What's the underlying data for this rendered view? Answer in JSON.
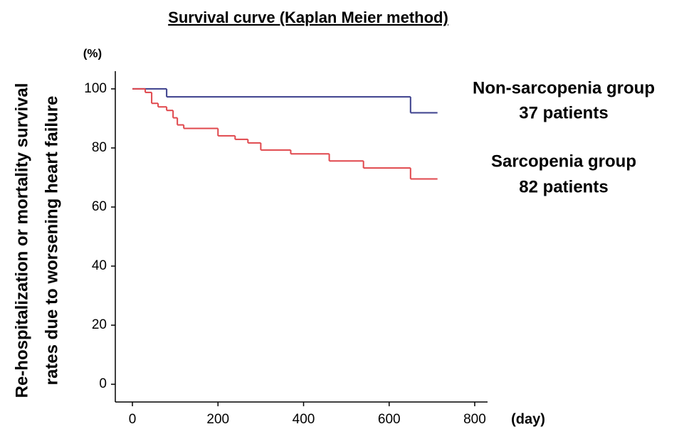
{
  "chart_data": {
    "type": "step",
    "title": "Survival curve (Kaplan Meier method)",
    "y_label": [
      "Re-hospitalization or mortality survival",
      "rates due to worsening heart failure"
    ],
    "y_unit": "(%)",
    "x_unit": "(day)",
    "xlim": [
      -40,
      830
    ],
    "xticks": [
      0,
      200,
      400,
      600,
      800
    ],
    "ylim": [
      -6,
      106
    ],
    "yticks": [
      0,
      20,
      40,
      60,
      80,
      100
    ],
    "series": [
      {
        "name": "Non-sarcopenia group",
        "count_label": "37 patients",
        "color": "#3b3f8c",
        "x": [
          0,
          80,
          650,
          713
        ],
        "values": [
          100,
          97.3,
          91.9,
          91.9
        ]
      },
      {
        "name": "Sarcopenia group",
        "count_label": "82 patients",
        "color": "#e0474c",
        "x": [
          0,
          30,
          45,
          60,
          80,
          95,
          105,
          120,
          200,
          240,
          270,
          300,
          370,
          460,
          540,
          650,
          713
        ],
        "values": [
          100,
          98.8,
          95.1,
          93.9,
          92.7,
          90.2,
          87.8,
          86.6,
          84.1,
          82.9,
          81.7,
          79.3,
          78.0,
          75.6,
          73.2,
          69.5,
          69.5
        ]
      }
    ]
  }
}
